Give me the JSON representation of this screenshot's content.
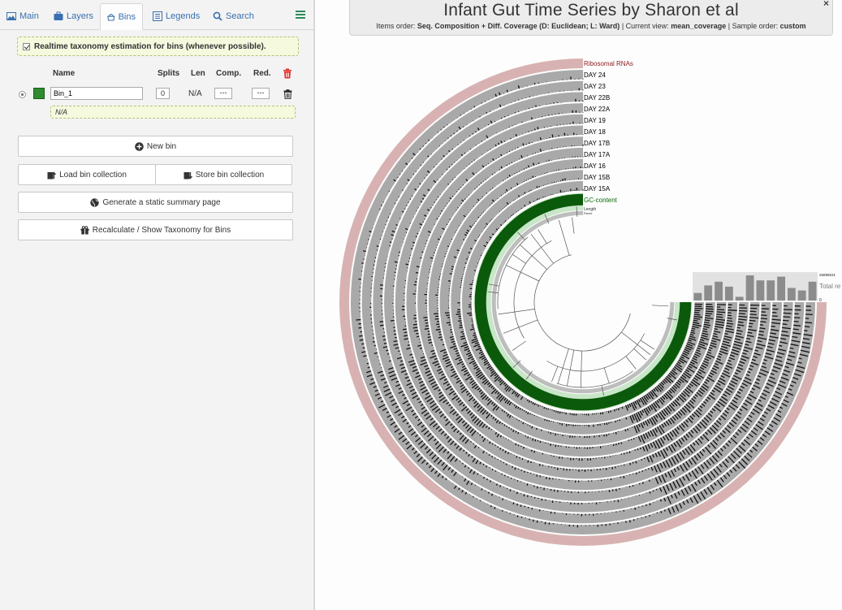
{
  "tabs": [
    {
      "label": "Main",
      "icon": "image-icon"
    },
    {
      "label": "Layers",
      "icon": "briefcase-icon"
    },
    {
      "label": "Bins",
      "icon": "bins-icon"
    },
    {
      "label": "Legends",
      "icon": "list-icon"
    },
    {
      "label": "Search",
      "icon": "search-icon"
    }
  ],
  "bins_panel": {
    "realtime_label": "Realtime taxonomy estimation for bins (whenever possible).",
    "realtime_checked": true,
    "columns": {
      "name": "Name",
      "splits": "Splits",
      "len": "Len",
      "comp": "Comp.",
      "red": "Red."
    },
    "bin": {
      "name": "Bin_1",
      "color": "#2e8b2e",
      "splits": "0",
      "len": "N/A",
      "comp": "---",
      "red": "---",
      "taxonomy": "N/A"
    },
    "buttons": {
      "new_bin": "New bin",
      "load_collection": "Load bin collection",
      "store_collection": "Store bin collection",
      "summary": "Generate a static summary page",
      "taxonomy": "Recalculate / Show Taxonomy for Bins"
    }
  },
  "header": {
    "title": "Infant Gut Time Series by Sharon et al",
    "items_order_label": "Items order:",
    "items_order_value": "Seq. Composition + Diff. Coverage (D: Euclidean; L: Ward)",
    "current_view_label": "Current view:",
    "current_view_value": "mean_coverage",
    "sample_order_label": "Sample order:",
    "sample_order_value": "custom",
    "close": "×"
  },
  "layers": [
    {
      "label": "Ribosomal RNAs",
      "color": "#8b1a1a"
    },
    {
      "label": "DAY 24",
      "color": "#000000"
    },
    {
      "label": "DAY 23",
      "color": "#000000"
    },
    {
      "label": "DAY 22B",
      "color": "#000000"
    },
    {
      "label": "DAY 22A",
      "color": "#000000"
    },
    {
      "label": "DAY 19",
      "color": "#000000"
    },
    {
      "label": "DAY 18",
      "color": "#000000"
    },
    {
      "label": "DAY 17B",
      "color": "#000000"
    },
    {
      "label": "DAY 17A",
      "color": "#000000"
    },
    {
      "label": "DAY 16",
      "color": "#000000"
    },
    {
      "label": "DAY 15B",
      "color": "#000000"
    },
    {
      "label": "DAY 15A",
      "color": "#000000"
    },
    {
      "label": "GC-content",
      "color": "#0a6a0a"
    },
    {
      "label": "Length",
      "color": "#333333"
    },
    {
      "label": "Parent",
      "color": "#333333"
    }
  ],
  "total_reads": {
    "max_label": "26898531",
    "min_label": "0",
    "label": "Total re",
    "values": [
      0.3,
      0.6,
      0.75,
      0.55,
      0.15,
      1.0,
      0.8,
      0.8,
      0.95,
      0.5,
      0.4,
      0.75
    ]
  },
  "colors": {
    "ring_grey": "#a9a9a9",
    "ring_outer": "#d8b2b2",
    "gc_green": "#0b5a0b",
    "gc_light": "#c8e6c8",
    "link": "#3a6fb0"
  }
}
